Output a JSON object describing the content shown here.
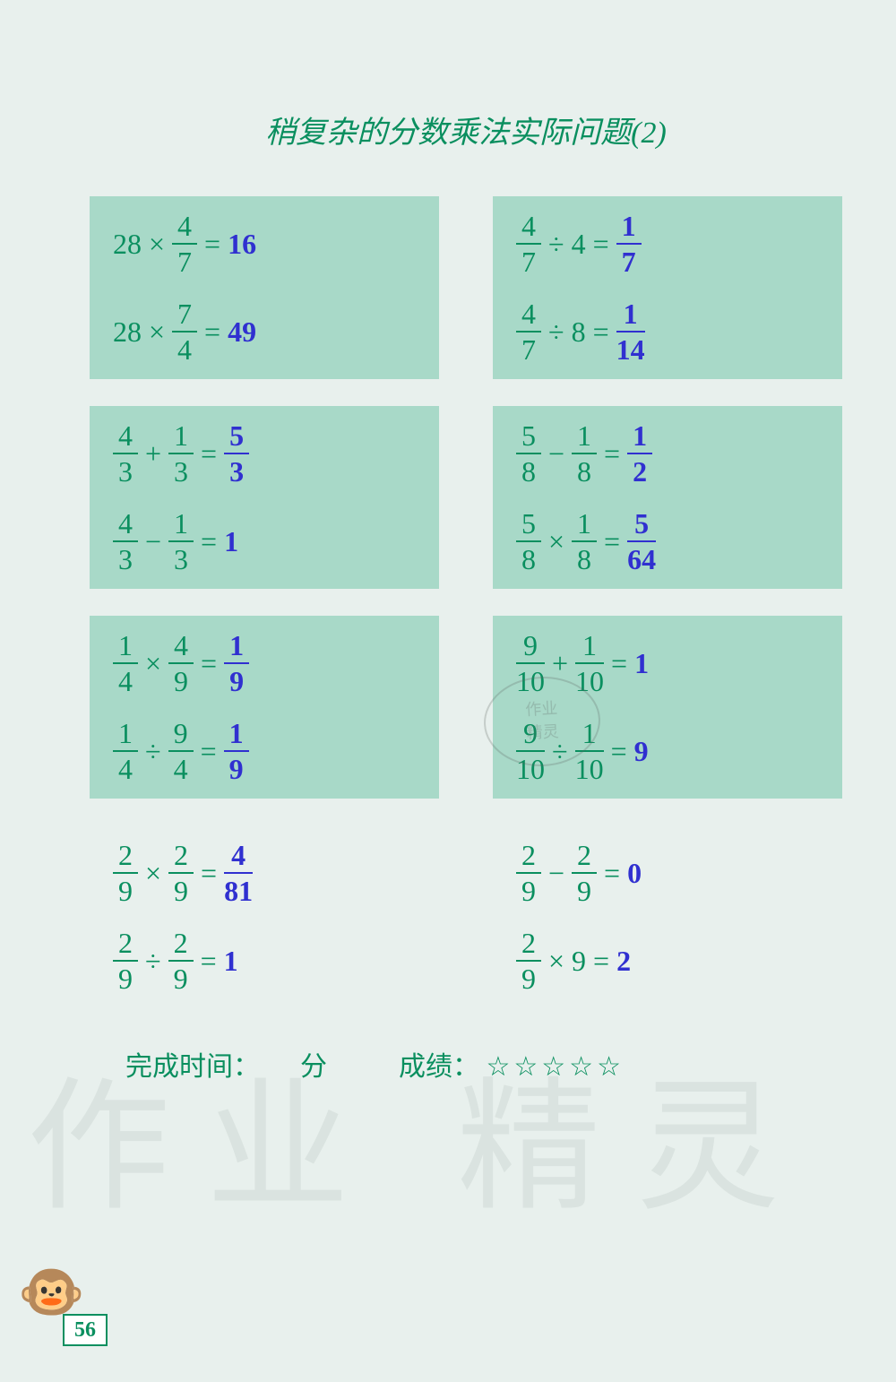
{
  "title": "稍复杂的分数乘法实际问题(2)",
  "page_number": "56",
  "footer": {
    "time_label": "完成时间：",
    "time_unit": "分",
    "score_label": "成绩：",
    "stars": "☆☆☆☆☆"
  },
  "watermark": {
    "left": "作业",
    "right": "精灵",
    "stamp_top": "作业",
    "stamp_bottom": "精灵"
  },
  "colors": {
    "page_bg": "#e8f0ed",
    "box_bg": "#a8d9c8",
    "question_color": "#0a8f5f",
    "answer_color": "#3030d0"
  },
  "left_column": [
    {
      "bg": true,
      "problems": [
        {
          "tokens": [
            {
              "t": "int",
              "v": "28"
            },
            {
              "t": "op",
              "v": "×"
            },
            {
              "t": "frac",
              "n": "4",
              "d": "7"
            },
            {
              "t": "op",
              "v": "="
            }
          ],
          "ans_type": "int",
          "ans": "16"
        },
        {
          "tokens": [
            {
              "t": "int",
              "v": "28"
            },
            {
              "t": "op",
              "v": "×"
            },
            {
              "t": "frac",
              "n": "7",
              "d": "4"
            },
            {
              "t": "op",
              "v": "="
            }
          ],
          "ans_type": "int",
          "ans": "49"
        }
      ]
    },
    {
      "bg": true,
      "problems": [
        {
          "tokens": [
            {
              "t": "frac",
              "n": "4",
              "d": "3"
            },
            {
              "t": "op",
              "v": "+"
            },
            {
              "t": "frac",
              "n": "1",
              "d": "3"
            },
            {
              "t": "op",
              "v": "="
            }
          ],
          "ans_type": "frac",
          "ans_n": "5",
          "ans_d": "3"
        },
        {
          "tokens": [
            {
              "t": "frac",
              "n": "4",
              "d": "3"
            },
            {
              "t": "op",
              "v": "−"
            },
            {
              "t": "frac",
              "n": "1",
              "d": "3"
            },
            {
              "t": "op",
              "v": "="
            }
          ],
          "ans_type": "int",
          "ans": "1"
        }
      ]
    },
    {
      "bg": true,
      "problems": [
        {
          "tokens": [
            {
              "t": "frac",
              "n": "1",
              "d": "4"
            },
            {
              "t": "op",
              "v": "×"
            },
            {
              "t": "frac",
              "n": "4",
              "d": "9"
            },
            {
              "t": "op",
              "v": "="
            }
          ],
          "ans_type": "frac",
          "ans_n": "1",
          "ans_d": "9"
        },
        {
          "tokens": [
            {
              "t": "frac",
              "n": "1",
              "d": "4"
            },
            {
              "t": "op",
              "v": "÷"
            },
            {
              "t": "frac",
              "n": "9",
              "d": "4"
            },
            {
              "t": "op",
              "v": "="
            }
          ],
          "ans_type": "frac",
          "ans_n": "1",
          "ans_d": "9"
        }
      ]
    },
    {
      "bg": false,
      "problems": [
        {
          "tokens": [
            {
              "t": "frac",
              "n": "2",
              "d": "9"
            },
            {
              "t": "op",
              "v": "×"
            },
            {
              "t": "frac",
              "n": "2",
              "d": "9"
            },
            {
              "t": "op",
              "v": "="
            }
          ],
          "ans_type": "frac",
          "ans_n": "4",
          "ans_d": "81"
        },
        {
          "tokens": [
            {
              "t": "frac",
              "n": "2",
              "d": "9"
            },
            {
              "t": "op",
              "v": "÷"
            },
            {
              "t": "frac",
              "n": "2",
              "d": "9"
            },
            {
              "t": "op",
              "v": "="
            }
          ],
          "ans_type": "int",
          "ans": "1"
        }
      ]
    }
  ],
  "right_column": [
    {
      "bg": true,
      "problems": [
        {
          "tokens": [
            {
              "t": "frac",
              "n": "4",
              "d": "7"
            },
            {
              "t": "op",
              "v": "÷"
            },
            {
              "t": "int",
              "v": "4"
            },
            {
              "t": "op",
              "v": "="
            }
          ],
          "ans_type": "frac",
          "ans_n": "1",
          "ans_d": "7"
        },
        {
          "tokens": [
            {
              "t": "frac",
              "n": "4",
              "d": "7"
            },
            {
              "t": "op",
              "v": "÷"
            },
            {
              "t": "int",
              "v": "8"
            },
            {
              "t": "op",
              "v": "="
            }
          ],
          "ans_type": "frac",
          "ans_n": "1",
          "ans_d": "14"
        }
      ]
    },
    {
      "bg": true,
      "problems": [
        {
          "tokens": [
            {
              "t": "frac",
              "n": "5",
              "d": "8"
            },
            {
              "t": "op",
              "v": "−"
            },
            {
              "t": "frac",
              "n": "1",
              "d": "8"
            },
            {
              "t": "op",
              "v": "="
            }
          ],
          "ans_type": "frac",
          "ans_n": "1",
          "ans_d": "2"
        },
        {
          "tokens": [
            {
              "t": "frac",
              "n": "5",
              "d": "8"
            },
            {
              "t": "op",
              "v": "×"
            },
            {
              "t": "frac",
              "n": "1",
              "d": "8"
            },
            {
              "t": "op",
              "v": "="
            }
          ],
          "ans_type": "frac",
          "ans_n": "5",
          "ans_d": "64"
        }
      ]
    },
    {
      "bg": true,
      "problems": [
        {
          "tokens": [
            {
              "t": "frac",
              "n": "9",
              "d": "10"
            },
            {
              "t": "op",
              "v": "+"
            },
            {
              "t": "frac",
              "n": "1",
              "d": "10"
            },
            {
              "t": "op",
              "v": "="
            }
          ],
          "ans_type": "int",
          "ans": "1"
        },
        {
          "tokens": [
            {
              "t": "frac",
              "n": "9",
              "d": "10"
            },
            {
              "t": "op",
              "v": "÷"
            },
            {
              "t": "frac",
              "n": "1",
              "d": "10"
            },
            {
              "t": "op",
              "v": "="
            }
          ],
          "ans_type": "int",
          "ans": "9"
        }
      ]
    },
    {
      "bg": false,
      "problems": [
        {
          "tokens": [
            {
              "t": "frac",
              "n": "2",
              "d": "9"
            },
            {
              "t": "op",
              "v": "−"
            },
            {
              "t": "frac",
              "n": "2",
              "d": "9"
            },
            {
              "t": "op",
              "v": "="
            }
          ],
          "ans_type": "int",
          "ans": "0"
        },
        {
          "tokens": [
            {
              "t": "frac",
              "n": "2",
              "d": "9"
            },
            {
              "t": "op",
              "v": "×"
            },
            {
              "t": "int",
              "v": "9"
            },
            {
              "t": "op",
              "v": "="
            }
          ],
          "ans_type": "int",
          "ans": "2"
        }
      ]
    }
  ]
}
